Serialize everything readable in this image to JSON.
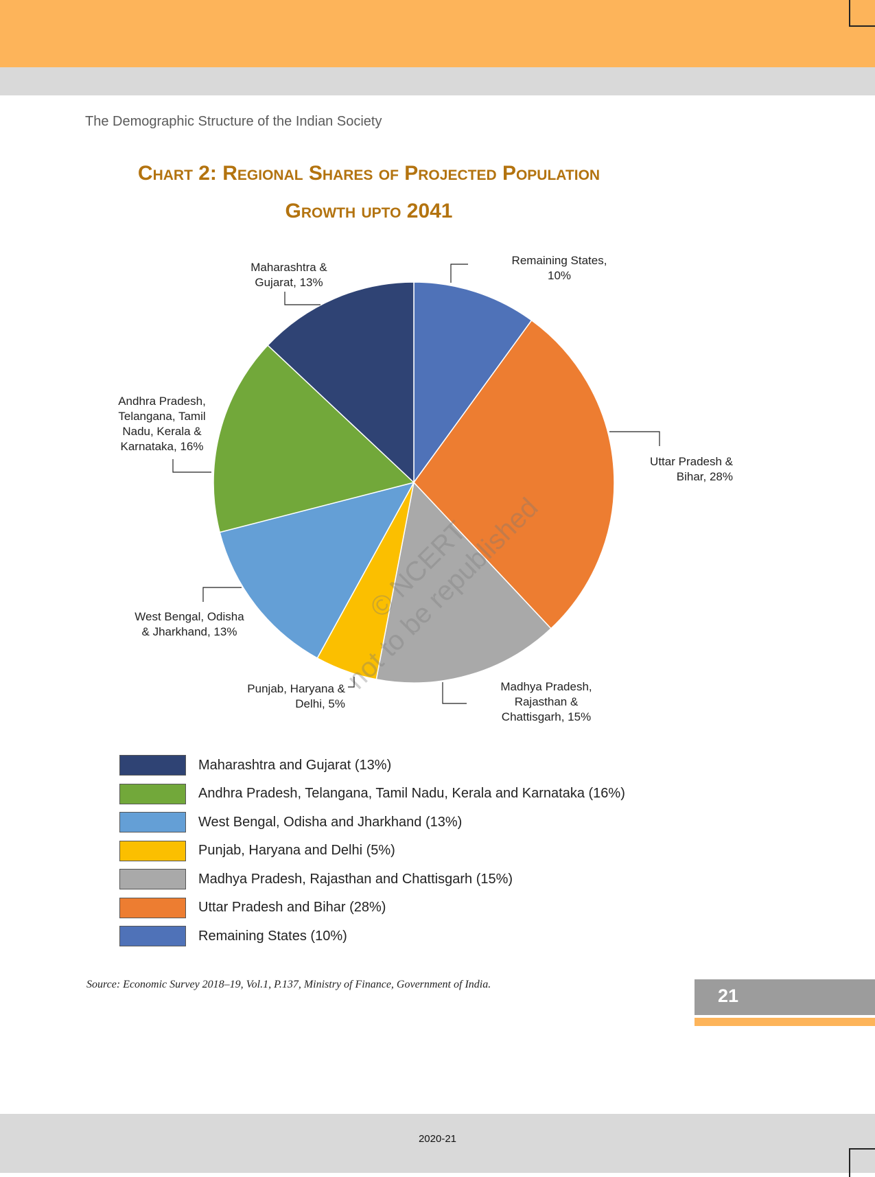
{
  "page": {
    "running_head": "The Demographic Structure of the Indian Society",
    "title_line1": "Chart 2: Regional Shares of Projected Population",
    "title_line2": "Growth upto 2041",
    "source": "Source: Economic Survey 2018–19, Vol.1, P.137, Ministry of Finance, Government of India.",
    "page_number": "21",
    "footer_year": "2020-21",
    "watermark_line1": "© NCERT",
    "watermark_line2": "not to be republished",
    "colors": {
      "header_orange": "#fdb45a",
      "band_gray": "#d9d9d9",
      "title": "#b3730f"
    }
  },
  "chart_data": {
    "type": "pie",
    "title": "Chart 2: Regional Shares of Projected Population Growth upto 2041",
    "start": "top",
    "direction": "clockwise",
    "unit": "%",
    "slices": [
      {
        "name": "Remaining States",
        "value": 10,
        "color": "#4f72b8",
        "data_label": [
          "Remaining States,",
          "10%"
        ],
        "legend": "Remaining States (10%)"
      },
      {
        "name": "Uttar Pradesh & Bihar",
        "value": 28,
        "color": "#ed7d31",
        "data_label": [
          "Uttar Pradesh &",
          "Bihar, 28%"
        ],
        "legend": "Uttar Pradesh and Bihar (28%)"
      },
      {
        "name": "Madhya Pradesh, Rajasthan & Chattisgarh",
        "value": 15,
        "color": "#a9a9a9",
        "data_label": [
          "Madhya Pradesh,",
          "Rajasthan &",
          "Chattisgarh, 15%"
        ],
        "legend": "Madhya Pradesh, Rajasthan and Chattisgarh (15%)"
      },
      {
        "name": "Punjab, Haryana & Delhi",
        "value": 5,
        "color": "#fbbf00",
        "data_label": [
          "Punjab, Haryana &",
          "Delhi, 5%"
        ],
        "legend": "Punjab, Haryana and Delhi (5%)"
      },
      {
        "name": "West Bengal, Odisha & Jharkhand",
        "value": 13,
        "color": "#649fd6",
        "data_label": [
          "West Bengal, Odisha",
          "& Jharkhand, 13%"
        ],
        "legend": "West Bengal, Odisha and Jharkhand (13%)"
      },
      {
        "name": "Andhra Pradesh, Telangana, Tamil Nadu, Kerala & Karnataka",
        "value": 16,
        "color": "#72a83a",
        "data_label": [
          "Andhra Pradesh,",
          "Telangana, Tamil",
          "Nadu, Kerala &",
          "Karnataka, 16%"
        ],
        "legend": "Andhra Pradesh, Telangana, Tamil Nadu, Kerala and Karnataka (16%)"
      },
      {
        "name": "Maharashtra & Gujarat",
        "value": 13,
        "color": "#2f4374",
        "data_label": [
          "Maharashtra &",
          "Gujarat, 13%"
        ],
        "legend": "Maharashtra and Gujarat (13%)"
      }
    ],
    "legend_order": [
      6,
      5,
      4,
      3,
      2,
      1,
      0
    ],
    "legend_placement": "bottom"
  }
}
